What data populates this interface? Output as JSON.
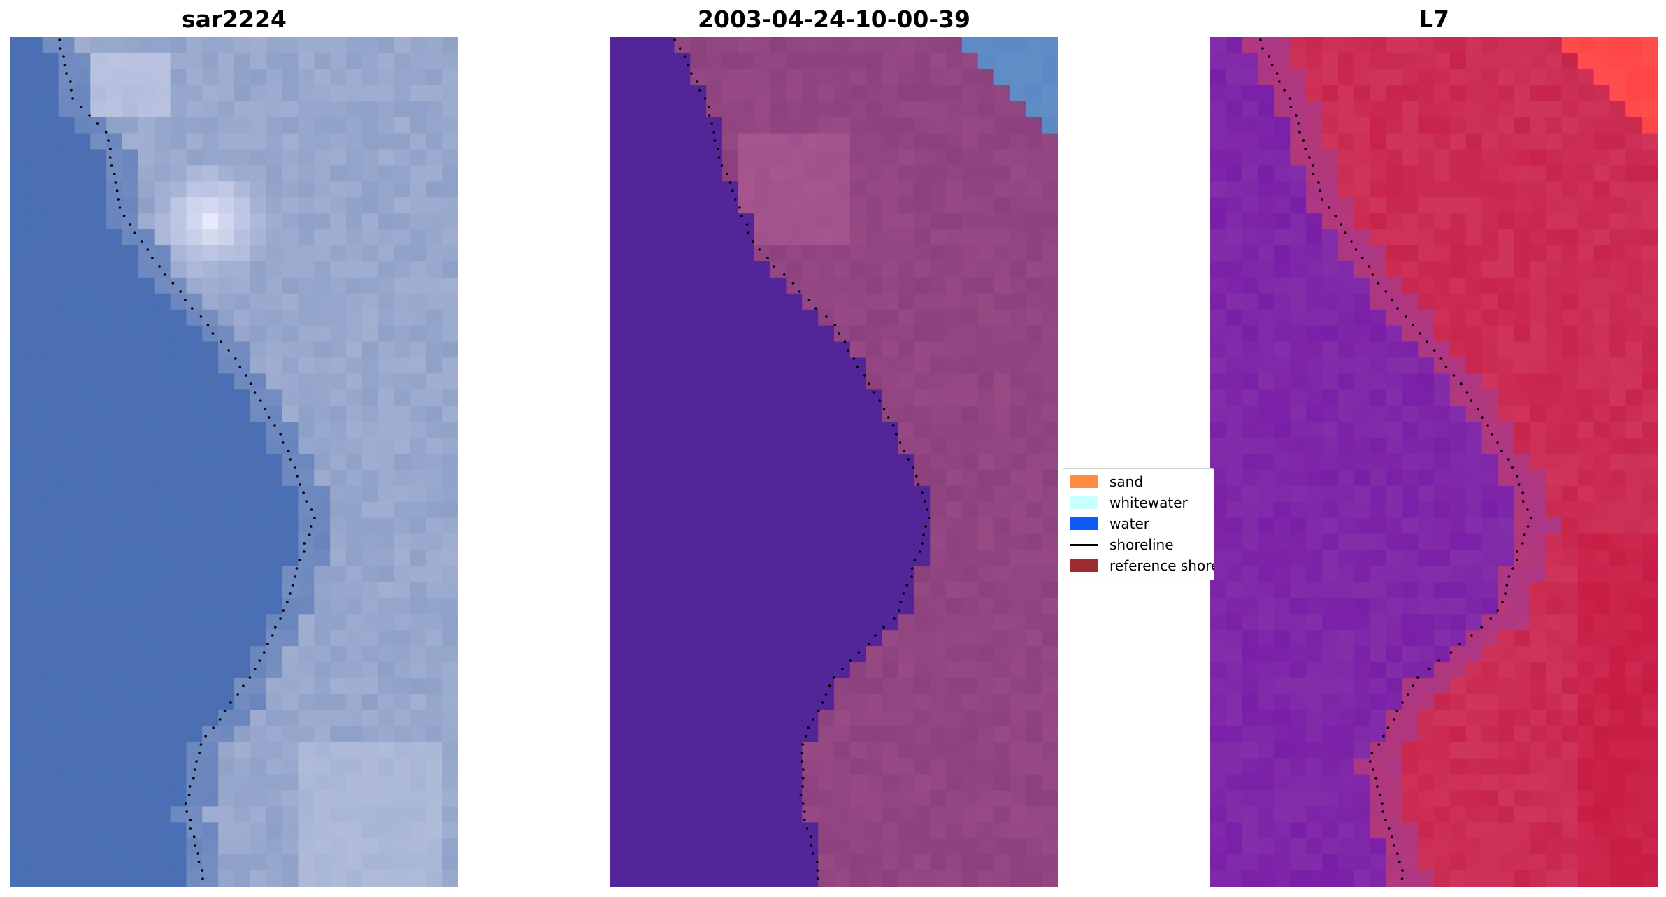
{
  "panels": [
    {
      "title": "sar2224",
      "palette": "rgb",
      "coast": "x1"
    },
    {
      "title": "2003-04-24-10-00-39",
      "palette": "classified",
      "coast": "x2"
    },
    {
      "title": "L7",
      "palette": "index",
      "coast": "x3"
    }
  ],
  "legend": {
    "items": [
      {
        "label": "sand",
        "color": "#ff8c42",
        "kind": "patch"
      },
      {
        "label": "whitewater",
        "color": "#c8ffff",
        "kind": "patch"
      },
      {
        "label": "water",
        "color": "#0a5cf5",
        "kind": "patch"
      },
      {
        "label": "shoreline",
        "color": "#000000",
        "kind": "line"
      },
      {
        "label": "reference shoreline",
        "color": "#9b2d30",
        "kind": "patch"
      }
    ]
  },
  "colors": {
    "rgb_water": "#4a6fb5",
    "rgb_land": "#8ea0c8",
    "class_water": "#522699",
    "class_land": "#8c417e",
    "class_corner": "#5b8ac4",
    "idx_water": "#7a1fa8",
    "idx_land": "#c8244a",
    "idx_corner": "#ff4545"
  }
}
